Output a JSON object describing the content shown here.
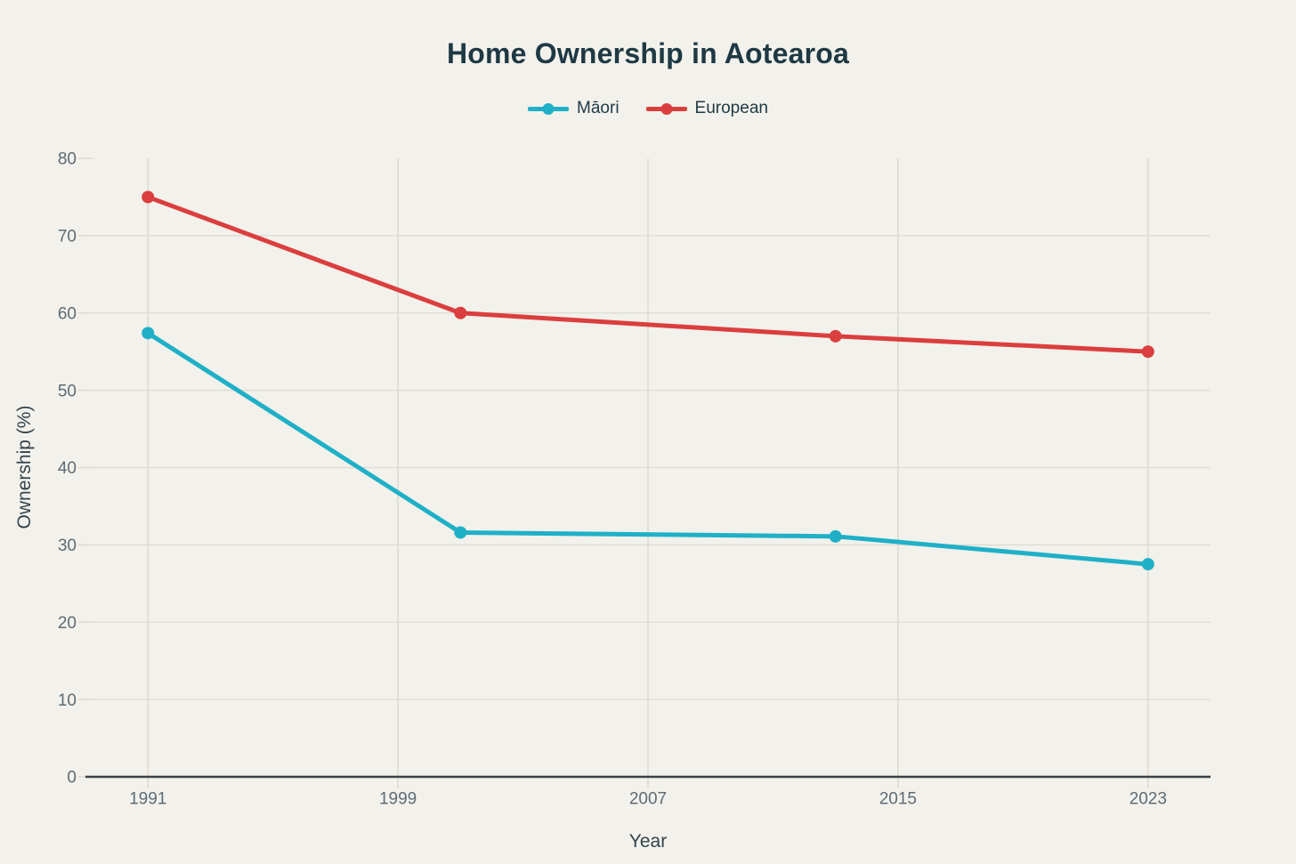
{
  "colors": {
    "background": "#f2f1eb",
    "title_text": "#1e3944",
    "tick_text": "#5d6c76",
    "axis_title_text": "#33434c",
    "gridline": "#dcdbd3",
    "axis_line": "#3a4247",
    "maori_series": "#1fb0c7",
    "european_series": "#db3e3e"
  },
  "chart_data": {
    "type": "line",
    "title": "Home Ownership in Aotearoa",
    "xlabel": "Year",
    "ylabel": "Ownership (%)",
    "x": [
      1991,
      2001,
      2013,
      2023
    ],
    "series": [
      {
        "name": "Māori",
        "color": "#1fb0c7",
        "values": [
          57.4,
          31.6,
          31.1,
          27.5
        ]
      },
      {
        "name": "European",
        "color": "#db3e3e",
        "values": [
          75,
          60,
          57,
          55
        ]
      }
    ],
    "xticks": [
      1991,
      1999,
      2007,
      2015,
      2023
    ],
    "yticks": [
      0,
      10,
      20,
      30,
      40,
      50,
      60,
      70,
      80
    ],
    "xlim": [
      1989,
      2025
    ],
    "ylim": [
      0,
      80
    ],
    "grid": true,
    "legend_position": "top"
  }
}
